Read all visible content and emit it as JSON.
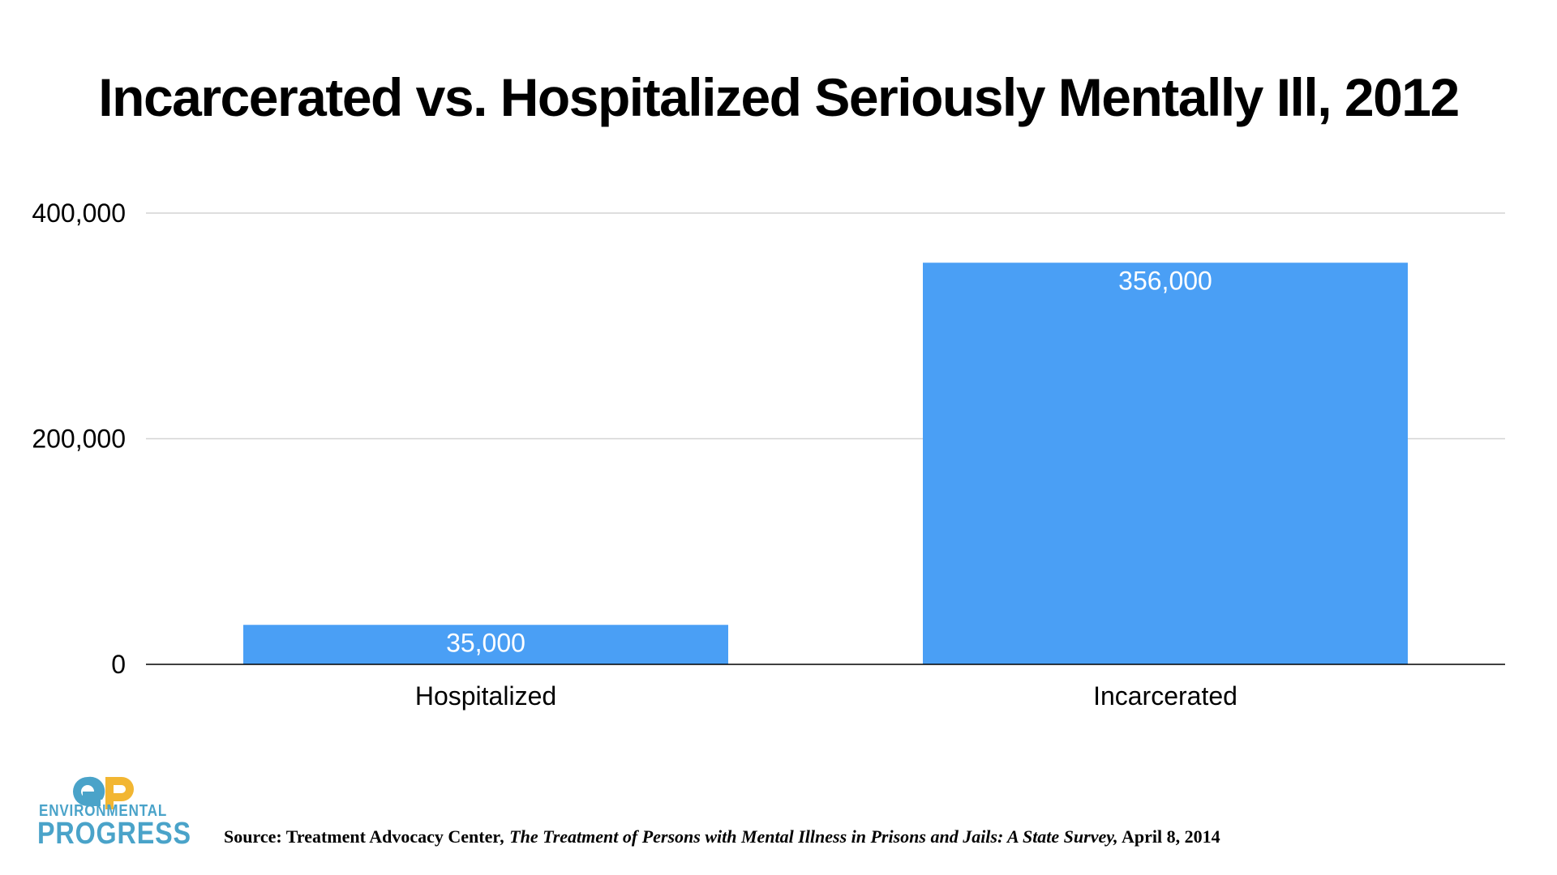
{
  "chart_data": {
    "type": "bar",
    "title": "Incarcerated vs. Hospitalized Seriously Mentally Ill, 2012",
    "categories": [
      "Hospitalized",
      "Incarcerated"
    ],
    "values": [
      35000,
      356000
    ],
    "value_labels": [
      "35,000",
      "356,000"
    ],
    "ylim": [
      0,
      400000
    ],
    "yticks": [
      0,
      200000,
      400000
    ],
    "ytick_labels": [
      "0",
      "200,000",
      "400,000"
    ],
    "xlabel": "",
    "ylabel": "",
    "grid": true,
    "colors": {
      "bar": "#4a9ff5",
      "grid": "#d4d4d4",
      "axis": "#000000"
    }
  },
  "logo": {
    "line1": "ENVIRONMENTAL",
    "line2": "PROGRESS",
    "colors": {
      "primary": "#4aa3c9",
      "accent": "#f2b632"
    }
  },
  "source": {
    "prefix": "Source: Treatment Advocacy Center",
    "italic": ", The Treatment of Persons with Mental Illness in Prisons and Jails: A State Survey,",
    "suffix": " April 8, 2014"
  }
}
